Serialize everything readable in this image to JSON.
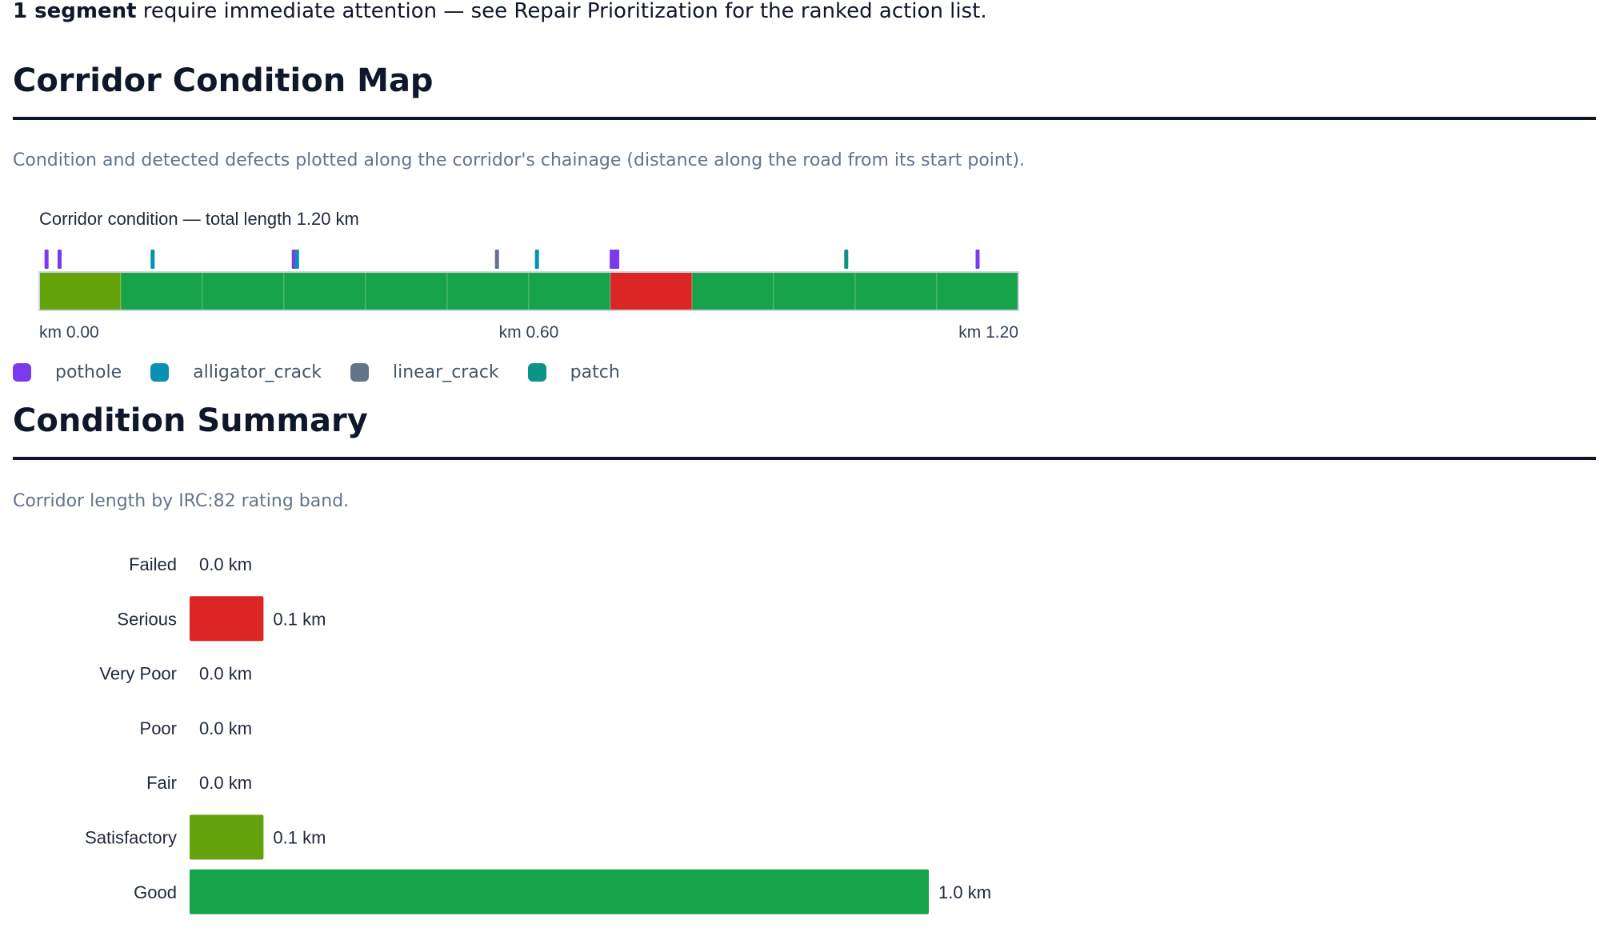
{
  "alert": {
    "bold": "1 segment",
    "rest": " require immediate attention — see Repair Prioritization for the ranked action list."
  },
  "map_section": {
    "heading": "Corridor Condition Map",
    "description": "Condition and detected defects plotted along the corridor's chainage (distance along the road from its start point)."
  },
  "summary_section": {
    "heading": "Condition Summary",
    "description": "Corridor length by IRC:82 rating band."
  },
  "colors": {
    "good": "#16a34a",
    "satisfactory": "#65a30d",
    "serious": "#dc2626",
    "pothole": "#7c3aed",
    "alligator_crack": "#0891b2",
    "linear_crack": "#64748b",
    "patch": "#0d9488"
  },
  "legend": [
    {
      "label": "pothole",
      "color": "#7c3aed"
    },
    {
      "label": "alligator_crack",
      "color": "#0891b2"
    },
    {
      "label": "linear_crack",
      "color": "#64748b"
    },
    {
      "label": "patch",
      "color": "#0d9488"
    }
  ],
  "chart_data": [
    {
      "type": "bar",
      "title": "Corridor condition — total length 1.20 km",
      "total_length_km": 1.2,
      "x_unit": "km",
      "tick_labels": [
        "km 0.00",
        "km 0.60",
        "km 1.20"
      ],
      "ticks_km": [
        0.0,
        0.6,
        1.2
      ],
      "segments": [
        {
          "start_km": 0.0,
          "end_km": 0.1,
          "rating": "Satisfactory"
        },
        {
          "start_km": 0.1,
          "end_km": 0.2,
          "rating": "Good"
        },
        {
          "start_km": 0.2,
          "end_km": 0.3,
          "rating": "Good"
        },
        {
          "start_km": 0.3,
          "end_km": 0.4,
          "rating": "Good"
        },
        {
          "start_km": 0.4,
          "end_km": 0.5,
          "rating": "Good"
        },
        {
          "start_km": 0.5,
          "end_km": 0.6,
          "rating": "Good"
        },
        {
          "start_km": 0.6,
          "end_km": 0.7,
          "rating": "Good"
        },
        {
          "start_km": 0.7,
          "end_km": 0.8,
          "rating": "Serious"
        },
        {
          "start_km": 0.8,
          "end_km": 0.9,
          "rating": "Good"
        },
        {
          "start_km": 0.9,
          "end_km": 1.0,
          "rating": "Good"
        },
        {
          "start_km": 1.0,
          "end_km": 1.1,
          "rating": "Good"
        },
        {
          "start_km": 1.1,
          "end_km": 1.2,
          "rating": "Good"
        }
      ],
      "defects": [
        {
          "km": 0.009,
          "type": "pothole"
        },
        {
          "km": 0.025,
          "type": "pothole"
        },
        {
          "km": 0.139,
          "type": "alligator_crack"
        },
        {
          "km": 0.312,
          "type": "pothole"
        },
        {
          "km": 0.316,
          "type": "alligator_crack"
        },
        {
          "km": 0.561,
          "type": "linear_crack"
        },
        {
          "km": 0.61,
          "type": "alligator_crack"
        },
        {
          "km": 0.705,
          "type": "pothole"
        },
        {
          "km": 0.989,
          "type": "patch"
        },
        {
          "km": 1.15,
          "type": "pothole"
        }
      ]
    },
    {
      "type": "bar",
      "orientation": "horizontal",
      "categories": [
        "Failed",
        "Serious",
        "Very Poor",
        "Poor",
        "Fair",
        "Satisfactory",
        "Good"
      ],
      "values": [
        0.0,
        0.1,
        0.0,
        0.0,
        0.0,
        0.1,
        1.0
      ],
      "value_labels": [
        "0.0 km",
        "0.1 km",
        "0.0 km",
        "0.0 km",
        "0.0 km",
        "0.1 km",
        "1.0 km"
      ],
      "bar_colors": [
        "#7f1d1d",
        "#dc2626",
        "#ea580c",
        "#f59e0b",
        "#eab308",
        "#65a30d",
        "#16a34a"
      ],
      "xlim": [
        0,
        1.0
      ]
    }
  ]
}
